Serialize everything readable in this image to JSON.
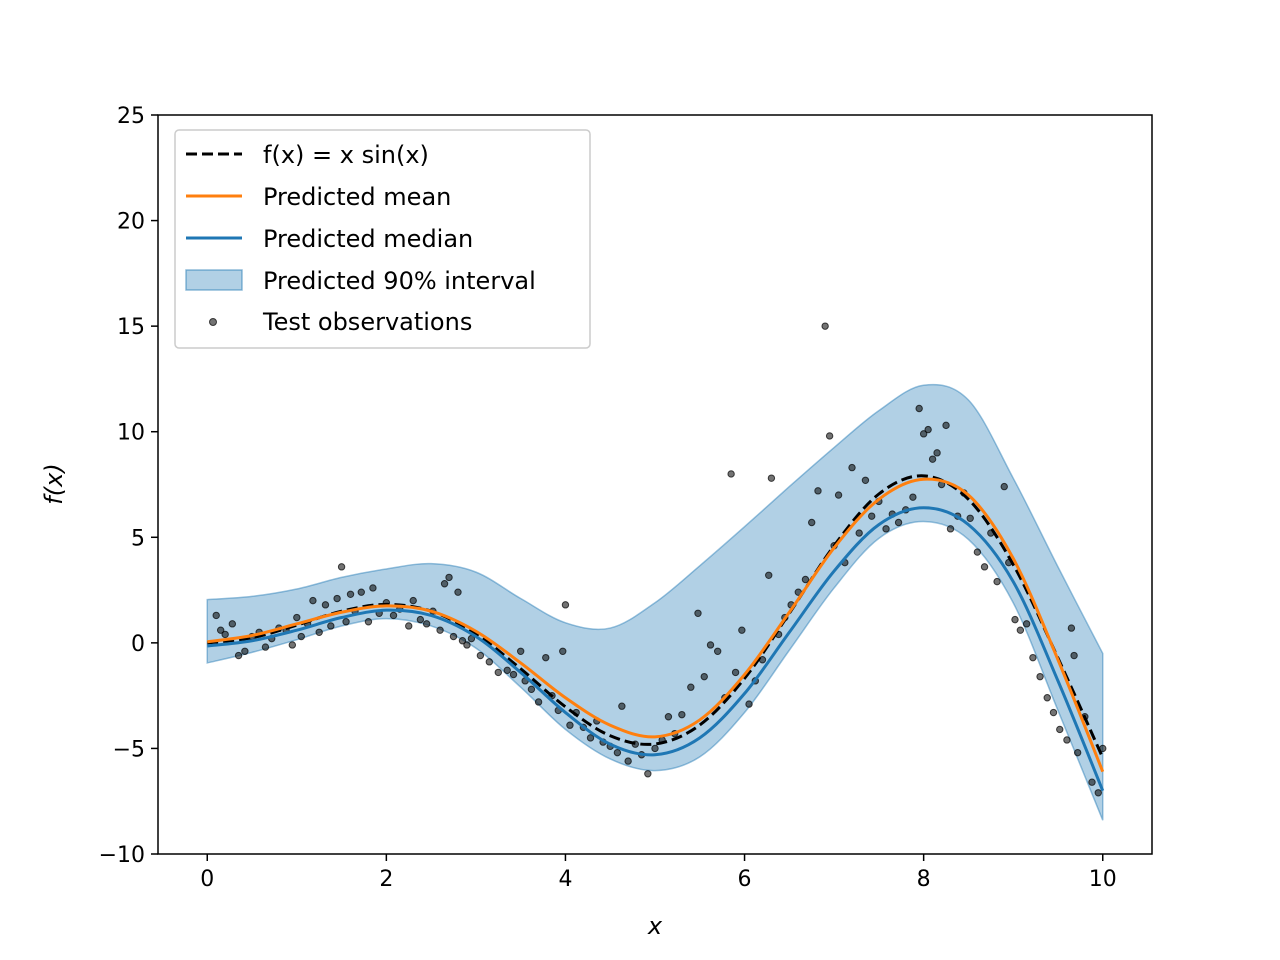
{
  "chart_data": {
    "type": "line",
    "title": "",
    "xlabel": "x",
    "ylabel": "f(x)",
    "xlim": [
      -0.55,
      10.55
    ],
    "ylim": [
      -10,
      25
    ],
    "xticks": [
      0,
      2,
      4,
      6,
      8,
      10
    ],
    "yticks": [
      -10,
      -5,
      0,
      5,
      10,
      15,
      20,
      25
    ],
    "xtick_labels": [
      "0",
      "2",
      "4",
      "6",
      "8",
      "10"
    ],
    "ytick_labels": [
      "−10",
      "−5",
      "0",
      "5",
      "10",
      "15",
      "20",
      "25"
    ],
    "grid": false,
    "legend_position": "upper-left",
    "x": [
      0,
      0.5,
      1,
      1.5,
      2,
      2.5,
      3,
      3.5,
      4,
      4.5,
      5,
      5.5,
      6,
      6.5,
      7,
      7.5,
      8,
      8.5,
      9,
      9.5,
      10
    ],
    "series": [
      {
        "name": "f(x) = x sin(x)",
        "style": "dashed",
        "color": "#000000",
        "values": [
          0,
          0.24,
          0.84,
          1.5,
          1.82,
          1.5,
          0.42,
          -1.23,
          -3.03,
          -4.4,
          -4.79,
          -3.89,
          -1.68,
          1.4,
          4.6,
          7.05,
          7.91,
          6.8,
          3.71,
          -0.72,
          -5.44
        ]
      },
      {
        "name": "Predicted mean",
        "style": "solid",
        "color": "#ff7f0e",
        "values": [
          0.05,
          0.35,
          0.9,
          1.45,
          1.75,
          1.5,
          0.55,
          -0.95,
          -2.6,
          -3.9,
          -4.45,
          -3.65,
          -1.5,
          1.45,
          4.5,
          6.8,
          7.75,
          7.0,
          4.0,
          -0.8,
          -6.1
        ]
      },
      {
        "name": "Predicted median",
        "style": "solid",
        "color": "#1f77b4",
        "values": [
          -0.15,
          0.1,
          0.6,
          1.2,
          1.55,
          1.3,
          0.3,
          -1.4,
          -3.3,
          -4.8,
          -5.3,
          -4.5,
          -2.4,
          0.5,
          3.4,
          5.6,
          6.4,
          5.6,
          2.9,
          -1.8,
          -7.0
        ]
      },
      {
        "name": "Predicted 90% interval",
        "style": "band",
        "color": "#1f77b4",
        "lower": [
          -0.95,
          -0.45,
          0.15,
          0.8,
          1.15,
          0.8,
          -0.25,
          -2.1,
          -4.1,
          -5.5,
          -6.05,
          -5.4,
          -3.3,
          -0.35,
          2.6,
          4.95,
          5.75,
          4.9,
          1.9,
          -3.2,
          -8.4
        ],
        "upper": [
          2.05,
          2.2,
          2.55,
          3.1,
          3.5,
          3.75,
          3.35,
          2.1,
          0.95,
          0.7,
          1.9,
          3.65,
          5.5,
          7.4,
          9.25,
          11.0,
          12.2,
          11.5,
          7.8,
          3.6,
          -0.5
        ]
      }
    ],
    "scatter": {
      "name": "Test observations",
      "color": "#000000",
      "points": [
        [
          0.1,
          1.3
        ],
        [
          0.15,
          0.6
        ],
        [
          0.2,
          0.4
        ],
        [
          0.28,
          0.9
        ],
        [
          0.35,
          -0.6
        ],
        [
          0.42,
          -0.4
        ],
        [
          0.5,
          0.3
        ],
        [
          0.58,
          0.5
        ],
        [
          0.65,
          -0.2
        ],
        [
          0.72,
          0.2
        ],
        [
          0.8,
          0.7
        ],
        [
          0.88,
          0.6
        ],
        [
          0.95,
          -0.1
        ],
        [
          1.0,
          1.2
        ],
        [
          1.05,
          0.3
        ],
        [
          1.12,
          0.9
        ],
        [
          1.18,
          2.0
        ],
        [
          1.25,
          0.5
        ],
        [
          1.32,
          1.8
        ],
        [
          1.38,
          0.8
        ],
        [
          1.45,
          2.1
        ],
        [
          1.5,
          3.6
        ],
        [
          1.55,
          1.0
        ],
        [
          1.6,
          2.3
        ],
        [
          1.65,
          1.5
        ],
        [
          1.72,
          2.4
        ],
        [
          1.8,
          1.0
        ],
        [
          1.85,
          2.6
        ],
        [
          1.92,
          1.4
        ],
        [
          2.0,
          1.9
        ],
        [
          2.08,
          1.3
        ],
        [
          2.15,
          1.6
        ],
        [
          2.25,
          0.8
        ],
        [
          2.3,
          2.0
        ],
        [
          2.38,
          1.1
        ],
        [
          2.45,
          0.9
        ],
        [
          2.52,
          1.5
        ],
        [
          2.6,
          0.6
        ],
        [
          2.65,
          2.8
        ],
        [
          2.7,
          3.1
        ],
        [
          2.75,
          0.3
        ],
        [
          2.8,
          2.4
        ],
        [
          2.85,
          0.1
        ],
        [
          2.9,
          -0.1
        ],
        [
          2.95,
          0.2
        ],
        [
          3.05,
          -0.6
        ],
        [
          3.15,
          -0.9
        ],
        [
          3.25,
          -1.4
        ],
        [
          3.35,
          -1.3
        ],
        [
          3.42,
          -1.5
        ],
        [
          3.5,
          -0.4
        ],
        [
          3.55,
          -1.8
        ],
        [
          3.62,
          -2.2
        ],
        [
          3.7,
          -2.8
        ],
        [
          3.78,
          -0.7
        ],
        [
          3.85,
          -2.5
        ],
        [
          3.92,
          -3.2
        ],
        [
          3.97,
          -0.4
        ],
        [
          4.0,
          1.8
        ],
        [
          4.05,
          -3.9
        ],
        [
          4.12,
          -3.3
        ],
        [
          4.2,
          -4.0
        ],
        [
          4.28,
          -4.5
        ],
        [
          4.35,
          -3.7
        ],
        [
          4.42,
          -4.7
        ],
        [
          4.5,
          -4.9
        ],
        [
          4.58,
          -5.2
        ],
        [
          4.63,
          -3.0
        ],
        [
          4.7,
          -5.6
        ],
        [
          4.78,
          -4.8
        ],
        [
          4.85,
          -5.3
        ],
        [
          4.92,
          -6.2
        ],
        [
          5.0,
          -5.0
        ],
        [
          5.08,
          -4.6
        ],
        [
          5.15,
          -3.5
        ],
        [
          5.22,
          -4.3
        ],
        [
          5.3,
          -3.4
        ],
        [
          5.4,
          -2.1
        ],
        [
          5.48,
          1.4
        ],
        [
          5.55,
          -1.6
        ],
        [
          5.62,
          -0.1
        ],
        [
          5.7,
          -0.4
        ],
        [
          5.78,
          -2.6
        ],
        [
          5.85,
          8.0
        ],
        [
          5.9,
          -1.4
        ],
        [
          5.97,
          0.6
        ],
        [
          6.05,
          -2.9
        ],
        [
          6.12,
          -1.8
        ],
        [
          6.2,
          -0.8
        ],
        [
          6.27,
          3.2
        ],
        [
          6.3,
          7.8
        ],
        [
          6.38,
          0.4
        ],
        [
          6.45,
          1.2
        ],
        [
          6.52,
          1.8
        ],
        [
          6.6,
          2.4
        ],
        [
          6.68,
          3.0
        ],
        [
          6.75,
          5.7
        ],
        [
          6.82,
          7.2
        ],
        [
          6.9,
          15.0
        ],
        [
          6.95,
          9.8
        ],
        [
          7.0,
          4.6
        ],
        [
          7.05,
          7.0
        ],
        [
          7.12,
          3.8
        ],
        [
          7.2,
          8.3
        ],
        [
          7.28,
          5.2
        ],
        [
          7.35,
          7.7
        ],
        [
          7.42,
          6.0
        ],
        [
          7.5,
          6.7
        ],
        [
          7.58,
          5.4
        ],
        [
          7.65,
          6.1
        ],
        [
          7.72,
          5.7
        ],
        [
          7.8,
          6.3
        ],
        [
          7.88,
          6.9
        ],
        [
          7.95,
          11.1
        ],
        [
          8.0,
          9.9
        ],
        [
          8.05,
          10.1
        ],
        [
          8.1,
          8.7
        ],
        [
          8.15,
          9.0
        ],
        [
          8.2,
          7.5
        ],
        [
          8.25,
          10.3
        ],
        [
          8.3,
          5.4
        ],
        [
          8.38,
          6.0
        ],
        [
          8.45,
          7.1
        ],
        [
          8.52,
          5.9
        ],
        [
          8.6,
          4.3
        ],
        [
          8.68,
          3.6
        ],
        [
          8.75,
          5.2
        ],
        [
          8.82,
          2.9
        ],
        [
          8.9,
          7.4
        ],
        [
          8.95,
          3.8
        ],
        [
          9.02,
          1.1
        ],
        [
          9.08,
          0.6
        ],
        [
          9.15,
          0.9
        ],
        [
          9.22,
          -0.7
        ],
        [
          9.3,
          -1.6
        ],
        [
          9.38,
          -2.6
        ],
        [
          9.45,
          -3.3
        ],
        [
          9.52,
          -4.1
        ],
        [
          9.6,
          -4.6
        ],
        [
          9.65,
          0.7
        ],
        [
          9.68,
          -0.6
        ],
        [
          9.72,
          -5.2
        ],
        [
          9.8,
          -3.5
        ],
        [
          9.88,
          -6.6
        ],
        [
          9.95,
          -7.1
        ],
        [
          10.0,
          -5.0
        ]
      ]
    }
  },
  "legend": {
    "items": [
      {
        "label": "f(x) = x sin(x)",
        "kind": "dashed-line",
        "color": "#000000"
      },
      {
        "label": "Predicted mean",
        "kind": "line",
        "color": "#ff7f0e"
      },
      {
        "label": "Predicted median",
        "kind": "line",
        "color": "#1f77b4"
      },
      {
        "label": "Predicted 90% interval",
        "kind": "patch",
        "color": "#1f77b4"
      },
      {
        "label": "Test observations",
        "kind": "marker",
        "color": "#000000"
      }
    ]
  }
}
